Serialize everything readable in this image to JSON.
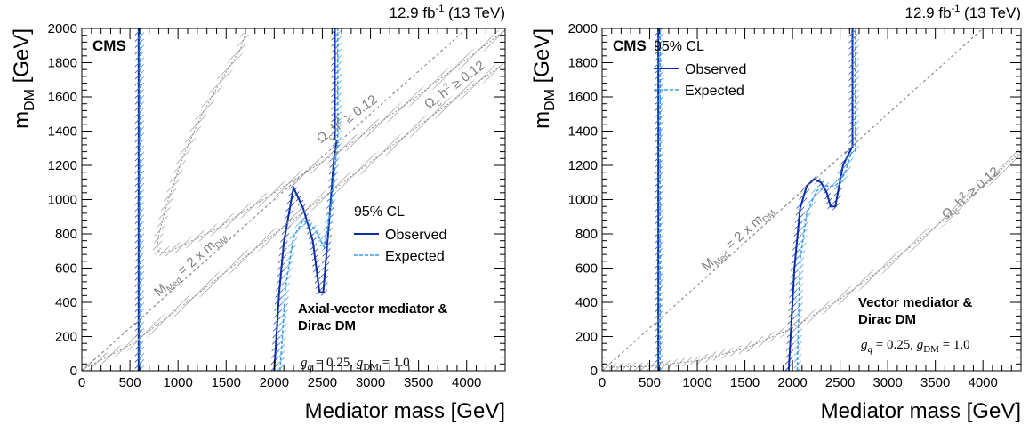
{
  "chart_data": [
    {
      "type": "line",
      "panel": "left",
      "lumi_label": "12.9 fb⁻¹ (13 TeV)",
      "experiment": "CMS",
      "xlabel": "Mediator mass [GeV]",
      "ylabel": "m_DM [GeV]",
      "xlim": [
        0,
        4400
      ],
      "ylim": [
        0,
        2000
      ],
      "xticks": [
        0,
        500,
        1000,
        1500,
        2000,
        2500,
        3000,
        3500,
        4000
      ],
      "yticks": [
        0,
        200,
        400,
        600,
        800,
        1000,
        1200,
        1400,
        1600,
        1800,
        2000
      ],
      "legend_title": "95% CL",
      "legend_position": "center-right",
      "legend": [
        "Observed",
        "Expected"
      ],
      "model_label": [
        "Axial-vector mediator &",
        "Dirac DM"
      ],
      "couplings": "g_q = 0.25, g_DM = 1.0",
      "diag_label": "M_Med = 2 x m_DM",
      "relic_label": "Ωc h² ≥ 0.12",
      "series": [
        {
          "name": "Observed",
          "color": "#0b2ea8",
          "dash": false,
          "x": [
            2000,
            2050,
            2100,
            2200,
            2300,
            2400,
            2470,
            2510,
            2570,
            2620,
            2650
          ],
          "y": [
            0,
            450,
            750,
            1070,
            950,
            760,
            460,
            460,
            870,
            1240,
            1350
          ]
        },
        {
          "name": "Observed",
          "color": "#0b2ea8",
          "dash": false,
          "x": [
            590,
            590
          ],
          "y": [
            0,
            2000
          ]
        },
        {
          "name": "Observed",
          "color": "#0b2ea8",
          "dash": false,
          "x": [
            2630,
            2630
          ],
          "y": [
            1350,
            2000
          ]
        },
        {
          "name": "Expected",
          "color": "#3c9be8",
          "dash": true,
          "x": [
            2060,
            2120,
            2200,
            2300,
            2420,
            2520,
            2600,
            2650
          ],
          "y": [
            0,
            500,
            780,
            880,
            830,
            720,
            1000,
            1300
          ]
        },
        {
          "name": "Expected",
          "color": "#3c9be8",
          "dash": true,
          "x": [
            610,
            610
          ],
          "y": [
            0,
            2000
          ]
        },
        {
          "name": "Expected",
          "color": "#3c9be8",
          "dash": true,
          "x": [
            2660,
            2660
          ],
          "y": [
            1300,
            2000
          ]
        },
        {
          "name": "M_Med = 2 x m_DM",
          "color": "#808080",
          "dash": true,
          "x": [
            0,
            4000
          ],
          "y": [
            0,
            2000
          ]
        },
        {
          "name": "Ωc h² ≥ 0.12",
          "color": "#8a8a8a",
          "dash": true,
          "relic": true,
          "x": [
            0,
            500,
            1000,
            1500,
            2000,
            2500,
            3000,
            3500,
            4000,
            4400
          ],
          "y": [
            5,
            150,
            360,
            580,
            800,
            1010,
            1220,
            1430,
            1640,
            1800
          ]
        },
        {
          "name": "Ωc h² ≥ 0.12",
          "color": "#8a8a8a",
          "dash": true,
          "relic": true,
          "x": [
            4400,
            3500,
            2800,
            2000,
            1400,
            1000,
            850,
            780,
            800,
            900,
            1050,
            1250,
            1450,
            1650,
            1700
          ],
          "y": [
            1990,
            1610,
            1330,
            1040,
            830,
            720,
            690,
            700,
            800,
            1000,
            1250,
            1500,
            1700,
            1880,
            1970
          ]
        }
      ]
    },
    {
      "type": "line",
      "panel": "right",
      "lumi_label": "12.9 fb⁻¹ (13 TeV)",
      "experiment": "CMS",
      "xlabel": "Mediator mass [GeV]",
      "ylabel": "m_DM [GeV]",
      "xlim": [
        0,
        4400
      ],
      "ylim": [
        0,
        2000
      ],
      "xticks": [
        0,
        500,
        1000,
        1500,
        2000,
        2500,
        3000,
        3500,
        4000
      ],
      "yticks": [
        0,
        200,
        400,
        600,
        800,
        1000,
        1200,
        1400,
        1600,
        1800,
        2000
      ],
      "legend_title": "95% CL",
      "legend_position": "top-left",
      "legend": [
        "Observed",
        "Expected"
      ],
      "model_label": [
        "Vector mediator &",
        "Dirac DM"
      ],
      "couplings": "g_q = 0.25, g_DM = 1.0",
      "diag_label": "M_Med = 2 x m_DM",
      "relic_label": "Ωc h² ≥ 0.12",
      "series": [
        {
          "name": "Observed",
          "color": "#0b2ea8",
          "dash": false,
          "x": [
            1960,
            2020,
            2080,
            2150,
            2230,
            2300,
            2360,
            2400,
            2450,
            2530,
            2620
          ],
          "y": [
            0,
            600,
            950,
            1080,
            1120,
            1100,
            1040,
            960,
            960,
            1200,
            1300
          ]
        },
        {
          "name": "Observed",
          "color": "#0b2ea8",
          "dash": false,
          "x": [
            590,
            590
          ],
          "y": [
            0,
            2000
          ]
        },
        {
          "name": "Observed",
          "color": "#0b2ea8",
          "dash": false,
          "x": [
            2630,
            2630
          ],
          "y": [
            1300,
            2000
          ]
        },
        {
          "name": "Expected",
          "color": "#3c9be8",
          "dash": true,
          "x": [
            2050,
            2080,
            2150,
            2250,
            2350,
            2450,
            2550,
            2620
          ],
          "y": [
            0,
            650,
            920,
            1050,
            1080,
            1080,
            1150,
            1280
          ]
        },
        {
          "name": "Expected",
          "color": "#3c9be8",
          "dash": true,
          "x": [
            610,
            610
          ],
          "y": [
            0,
            2000
          ]
        },
        {
          "name": "Expected",
          "color": "#3c9be8",
          "dash": true,
          "x": [
            2660,
            2660
          ],
          "y": [
            1280,
            2000
          ]
        },
        {
          "name": "M_Med = 2 x m_DM",
          "color": "#808080",
          "dash": true,
          "x": [
            0,
            4000
          ],
          "y": [
            0,
            2000
          ]
        },
        {
          "name": "Ωc h² ≥ 0.12",
          "color": "#8a8a8a",
          "dash": true,
          "relic": true,
          "x": [
            0,
            500,
            1000,
            1500,
            2000,
            2500,
            3000,
            3500,
            4000,
            4400
          ],
          "y": [
            20,
            25,
            60,
            130,
            250,
            420,
            620,
            840,
            1080,
            1280
          ]
        }
      ]
    }
  ]
}
